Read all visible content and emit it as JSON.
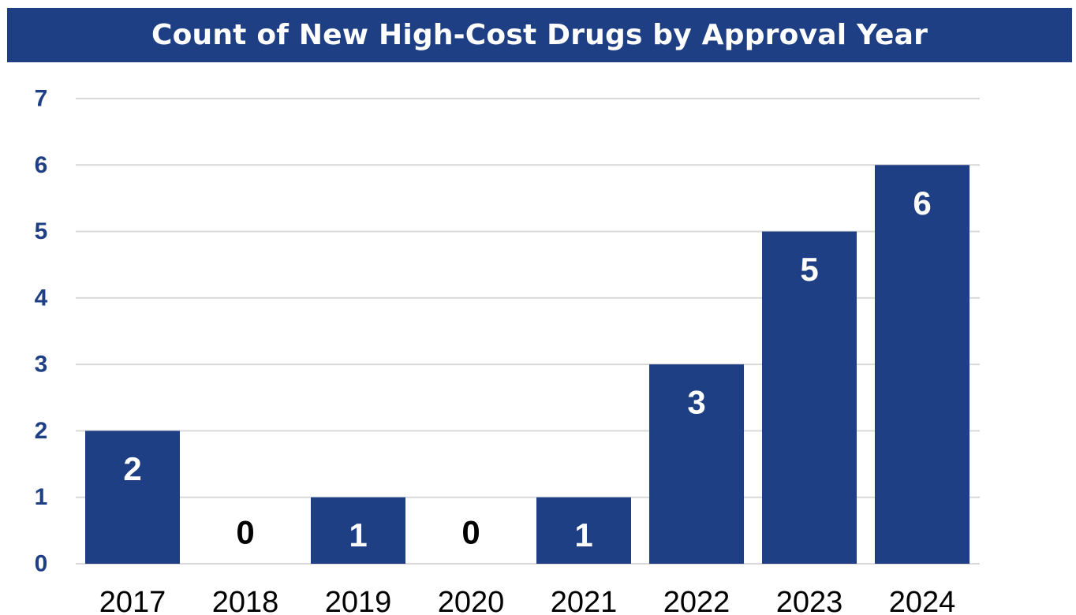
{
  "chart_data": {
    "type": "bar",
    "title": "Count of New High-Cost Drugs by Approval Year",
    "xlabel": "",
    "ylabel": "",
    "categories": [
      "2017",
      "2018",
      "2019",
      "2020",
      "2021",
      "2022",
      "2023",
      "2024"
    ],
    "values": [
      2,
      0,
      1,
      0,
      1,
      3,
      5,
      6
    ],
    "ylim": [
      0,
      7
    ],
    "yticks": [
      0,
      1,
      2,
      3,
      4,
      5,
      6,
      7
    ],
    "grid": true,
    "legend": "none",
    "data_labels": true
  },
  "colors": {
    "bar": "#1f3f85",
    "title_bg": "#1f3f85",
    "label_inside": "#ffffff",
    "label_outside": "#000000",
    "ytick": "#1f3f85",
    "grid": "#d9d9d9"
  }
}
